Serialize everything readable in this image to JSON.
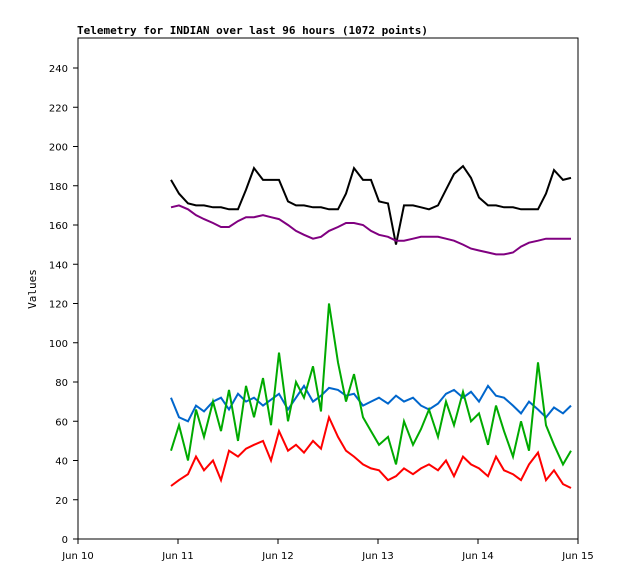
{
  "chart_data": {
    "type": "line",
    "title": "Telemetry for INDIAN over last 96 hours (1072 points)",
    "xlabel": "",
    "ylabel": "Values",
    "ylim": [
      0,
      255
    ],
    "xlim": [
      0,
      5
    ],
    "x_unit": "days since Jun 10",
    "yticks": [
      0,
      20,
      40,
      60,
      80,
      100,
      120,
      140,
      160,
      180,
      200,
      220,
      240
    ],
    "xticks": [
      {
        "value": 0,
        "label": "Jun 10"
      },
      {
        "value": 1,
        "label": "Jun 11"
      },
      {
        "value": 2,
        "label": "Jun 12"
      },
      {
        "value": 3,
        "label": "Jun 13"
      },
      {
        "value": 4,
        "label": "Jun 14"
      },
      {
        "value": 5,
        "label": "Jun 15"
      }
    ],
    "grid": false,
    "x": [
      0.93,
      1.01,
      1.1,
      1.18,
      1.26,
      1.35,
      1.43,
      1.51,
      1.6,
      1.68,
      1.76,
      1.85,
      1.93,
      2.01,
      2.1,
      2.18,
      2.26,
      2.35,
      2.43,
      2.51,
      2.6,
      2.68,
      2.76,
      2.85,
      2.93,
      3.01,
      3.1,
      3.18,
      3.26,
      3.35,
      3.43,
      3.51,
      3.6,
      3.68,
      3.76,
      3.85,
      3.93,
      4.01,
      4.1,
      4.18,
      4.26,
      4.35,
      4.43,
      4.51,
      4.6,
      4.68,
      4.76,
      4.85,
      4.93
    ],
    "series": [
      {
        "name": "black",
        "color": "#000000",
        "values": [
          183,
          176,
          171,
          170,
          170,
          169,
          169,
          168,
          168,
          178,
          189,
          183,
          183,
          183,
          172,
          170,
          170,
          169,
          169,
          168,
          168,
          176,
          189,
          183,
          183,
          172,
          171,
          150,
          170,
          170,
          169,
          168,
          170,
          178,
          186,
          190,
          184,
          174,
          170,
          170,
          169,
          169,
          168,
          168,
          168,
          176,
          188,
          183,
          184
        ]
      },
      {
        "name": "purple",
        "color": "#800080",
        "values": [
          169,
          170,
          168,
          165,
          163,
          161,
          159,
          159,
          162,
          164,
          164,
          165,
          164,
          163,
          160,
          157,
          155,
          153,
          154,
          157,
          159,
          161,
          161,
          160,
          157,
          155,
          154,
          152,
          152,
          153,
          154,
          154,
          154,
          153,
          152,
          150,
          148,
          147,
          146,
          145,
          145,
          146,
          149,
          151,
          152,
          153,
          153,
          153,
          153
        ]
      },
      {
        "name": "blue",
        "color": "#0066cc",
        "values": [
          72,
          62,
          60,
          68,
          65,
          70,
          72,
          66,
          74,
          70,
          72,
          68,
          71,
          74,
          66,
          72,
          78,
          70,
          73,
          77,
          76,
          73,
          74,
          68,
          70,
          72,
          69,
          73,
          70,
          72,
          68,
          66,
          69,
          74,
          76,
          72,
          75,
          70,
          78,
          73,
          72,
          68,
          64,
          70,
          66,
          62,
          67,
          64,
          68
        ]
      },
      {
        "name": "green",
        "color": "#00aa00",
        "values": [
          45,
          58,
          40,
          66,
          52,
          70,
          55,
          76,
          50,
          78,
          62,
          82,
          58,
          95,
          60,
          80,
          72,
          88,
          65,
          120,
          90,
          70,
          84,
          62,
          55,
          48,
          52,
          38,
          60,
          48,
          56,
          66,
          52,
          70,
          58,
          75,
          60,
          64,
          48,
          68,
          55,
          42,
          60,
          45,
          90,
          58,
          48,
          38,
          45
        ]
      },
      {
        "name": "red",
        "color": "#ff0000",
        "values": [
          27,
          30,
          33,
          42,
          35,
          40,
          30,
          45,
          42,
          46,
          48,
          50,
          40,
          55,
          45,
          48,
          44,
          50,
          46,
          62,
          52,
          45,
          42,
          38,
          36,
          35,
          30,
          32,
          36,
          33,
          36,
          38,
          35,
          40,
          32,
          42,
          38,
          36,
          32,
          42,
          35,
          33,
          30,
          38,
          44,
          30,
          35,
          28,
          26
        ]
      }
    ]
  }
}
